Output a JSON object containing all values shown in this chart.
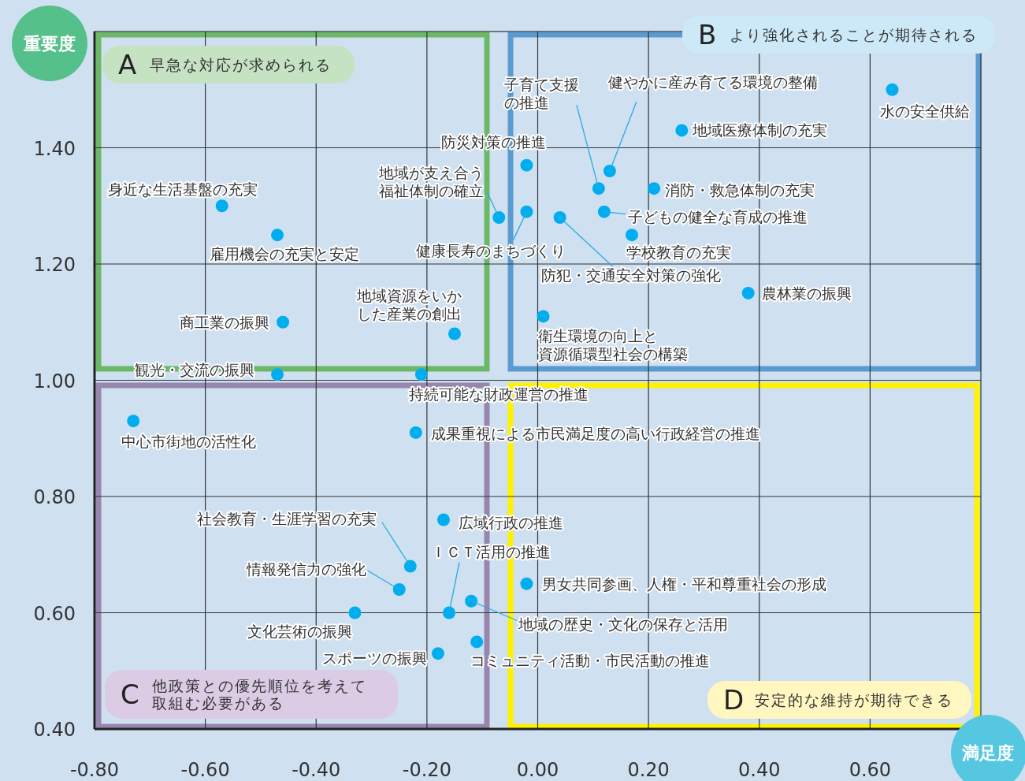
{
  "chart_data": {
    "type": "scatter",
    "xlabel": "満足度",
    "ylabel": "重要度",
    "color": "#00aeef",
    "marker": "circle",
    "grid": true,
    "xlim": [
      -0.8,
      0.8
    ],
    "ylim": [
      0.4,
      1.6
    ],
    "xticks": [
      {
        "value": -0.8,
        "label": "-0.80"
      },
      {
        "value": -0.6,
        "label": "-0.60"
      },
      {
        "value": -0.4,
        "label": "-0.40"
      },
      {
        "value": -0.2,
        "label": "-0.20"
      },
      {
        "value": 0,
        "label": "0.00"
      },
      {
        "value": 0.2,
        "label": "0.20"
      },
      {
        "value": 0.4,
        "label": "0.40"
      },
      {
        "value": 0.6,
        "label": "0.60"
      }
    ],
    "yticks": [
      {
        "value": 0.4,
        "label": "0.40"
      },
      {
        "value": 0.6,
        "label": "0.60"
      },
      {
        "value": 0.8,
        "label": "0.80"
      },
      {
        "value": 1.0,
        "label": "1.00"
      },
      {
        "value": 1.2,
        "label": "1.20"
      },
      {
        "value": 1.4,
        "label": "1.40"
      }
    ],
    "x": [
      0.64,
      0.26,
      0.13,
      0.11,
      -0.02,
      -0.07,
      -0.02,
      0.21,
      0.12,
      0.17,
      0.04,
      0.38,
      0.01,
      -0.57,
      -0.47,
      -0.15,
      -0.46,
      -0.47,
      -0.21,
      -0.73,
      -0.22,
      -0.17,
      -0.23,
      -0.25,
      -0.33,
      -0.16,
      -0.12,
      -0.18,
      -0.11,
      -0.02
    ],
    "values": [
      1.5,
      1.43,
      1.36,
      1.33,
      1.37,
      1.28,
      1.29,
      1.33,
      1.29,
      1.25,
      1.28,
      1.15,
      1.11,
      1.3,
      1.25,
      1.08,
      1.1,
      1.01,
      1.01,
      0.93,
      0.91,
      0.76,
      0.68,
      0.64,
      0.6,
      0.6,
      0.62,
      0.53,
      0.55,
      0.65
    ],
    "annotations": [
      {
        "text": "水の安全供給",
        "x": 0.64,
        "y": 1.5
      },
      {
        "text": "地域医療体制の充実",
        "x": 0.26,
        "y": 1.43
      },
      {
        "text": "健やかに産み育てる環境の整備",
        "x": 0.13,
        "y": 1.36
      },
      {
        "text": "子育て支援の推進",
        "x": 0.11,
        "y": 1.33
      },
      {
        "text": "防災対策の推進",
        "x": -0.02,
        "y": 1.37
      },
      {
        "text": "地域が支え合う福祉体制の確立",
        "x": -0.07,
        "y": 1.28
      },
      {
        "text": "健康長寿のまちづくり",
        "x": -0.02,
        "y": 1.29
      },
      {
        "text": "消防・救急体制の充実",
        "x": 0.21,
        "y": 1.33
      },
      {
        "text": "子どもの健全な育成の推進",
        "x": 0.12,
        "y": 1.29
      },
      {
        "text": "学校教育の充実",
        "x": 0.17,
        "y": 1.25
      },
      {
        "text": "防犯・交通安全対策の強化",
        "x": 0.04,
        "y": 1.28
      },
      {
        "text": "農林業の振興",
        "x": 0.38,
        "y": 1.15
      },
      {
        "text": "衛生環境の向上と資源循環型社会の構築",
        "x": 0.01,
        "y": 1.11
      },
      {
        "text": "身近な生活基盤の充実",
        "x": -0.57,
        "y": 1.3
      },
      {
        "text": "雇用機会の充実と安定",
        "x": -0.47,
        "y": 1.25
      },
      {
        "text": "地域資源をいかした産業の創出",
        "x": -0.15,
        "y": 1.08
      },
      {
        "text": "商工業の振興",
        "x": -0.46,
        "y": 1.1
      },
      {
        "text": "観光・交流の振興",
        "x": -0.47,
        "y": 1.01
      },
      {
        "text": "持続可能な財政運営の推進",
        "x": -0.21,
        "y": 1.01
      },
      {
        "text": "中心市街地の活性化",
        "x": -0.73,
        "y": 0.93
      },
      {
        "text": "成果重視による市民満足度の高い行政経営の推進",
        "x": -0.22,
        "y": 0.91
      },
      {
        "text": "広域行政の推進",
        "x": -0.17,
        "y": 0.76
      },
      {
        "text": "社会教育・生涯学習の充実",
        "x": -0.23,
        "y": 0.68
      },
      {
        "text": "情報発信力の強化",
        "x": -0.25,
        "y": 0.64
      },
      {
        "text": "文化芸術の振興",
        "x": -0.33,
        "y": 0.6
      },
      {
        "text": "ＩＣＴ活用の推進",
        "x": -0.16,
        "y": 0.6
      },
      {
        "text": "地域の歴史・文化の保存と活用",
        "x": -0.12,
        "y": 0.62
      },
      {
        "text": "スポーツの振興",
        "x": -0.18,
        "y": 0.53
      },
      {
        "text": "コミュニティ活動・市民活動の推進",
        "x": -0.11,
        "y": 0.55
      },
      {
        "text": "男女共同参画、人権・平和尊重社会の形成",
        "x": -0.02,
        "y": 0.65
      },
      "A 早急な対応が求められる",
      "B より強化されることが期待される",
      "C 他政策との優先順位を考えて取組む必要がある",
      "D 安定的な維持が期待できる"
    ]
  }
}
